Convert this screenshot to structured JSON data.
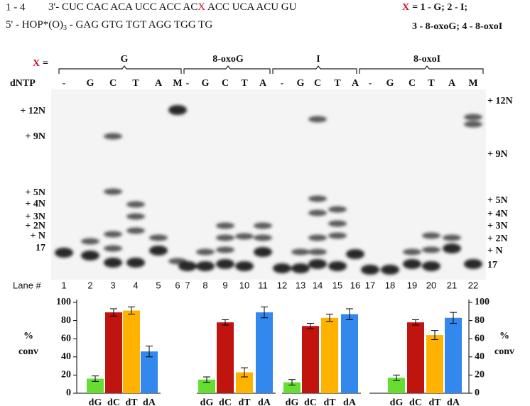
{
  "header": {
    "lanes": "1 - 4",
    "template": [
      "3'- CUC CAC ACA UCC ACC AC",
      "X",
      " ACC UCA ACU GU"
    ],
    "primer": [
      "5' - HOP*(O)",
      "3",
      " - GAG GTG TGT AGG TGG TG"
    ],
    "key": [
      "X",
      "= 1 - G; 2 - I;",
      "3 - 8-oxoG; 4 - 8-oxoI"
    ]
  },
  "gel": {
    "x_label": [
      "X",
      "="
    ],
    "groups": [
      "G",
      "8-oxoG",
      "I",
      "8-oxoI"
    ],
    "dntp_label": "dNTP",
    "dntp": [
      "-",
      "G",
      "C",
      "T",
      "A",
      "M",
      "-",
      "G",
      "C",
      "T",
      "A",
      "-",
      "G",
      "C",
      "T",
      "A",
      "-",
      "G",
      "C",
      "T",
      "A",
      "M"
    ],
    "left_markers": [
      "+ 12N",
      "+ 9N",
      "+ 5N",
      "+ 4N",
      "+ 3N",
      "+ 2N",
      "+ N",
      "17"
    ],
    "right_markers": [
      "+ 12N",
      "+ 9N",
      "+ 5N",
      "+ 4N",
      "+ 3N",
      "+ 2N",
      "+ N",
      "17"
    ],
    "lane_label": "Lane #",
    "lanes": [
      1,
      2,
      3,
      4,
      5,
      6,
      7,
      8,
      9,
      10,
      11,
      12,
      13,
      14,
      15,
      16,
      17,
      18,
      19,
      20,
      21,
      22
    ]
  },
  "chart_data": [
    {
      "type": "bar",
      "categories": [
        "dG",
        "dC",
        "dT",
        "dA"
      ],
      "values": [
        16,
        89,
        91,
        46
      ],
      "errors": [
        3,
        4,
        4,
        6
      ],
      "colors": [
        "#66dd33",
        "#c0140f",
        "#ffb300",
        "#3388ee"
      ],
      "ylim": [
        0,
        100
      ],
      "yticks": [
        0,
        20,
        40,
        60,
        80,
        100
      ],
      "y_label": [
        "%",
        "conv"
      ]
    },
    {
      "type": "bar",
      "categories": [
        "dG",
        "dC",
        "dT",
        "dA"
      ],
      "values": [
        15,
        78,
        23,
        89
      ],
      "errors": [
        3,
        3,
        5,
        6
      ],
      "colors": [
        "#66dd33",
        "#c0140f",
        "#ffb300",
        "#3388ee"
      ],
      "ylim": [
        0,
        100
      ]
    },
    {
      "type": "bar",
      "categories": [
        "dG",
        "dC",
        "dT",
        "dA"
      ],
      "values": [
        12,
        74,
        83,
        87
      ],
      "errors": [
        3,
        3,
        4,
        6
      ],
      "colors": [
        "#66dd33",
        "#c0140f",
        "#ffb300",
        "#3388ee"
      ],
      "ylim": [
        0,
        100
      ]
    },
    {
      "type": "bar",
      "categories": [
        "dG",
        "dC",
        "dT",
        "dA"
      ],
      "values": [
        17,
        78,
        64,
        83
      ],
      "errors": [
        3,
        3,
        5,
        6
      ],
      "colors": [
        "#66dd33",
        "#c0140f",
        "#ffb300",
        "#3388ee"
      ],
      "ylim": [
        0,
        100
      ],
      "yticks": [
        0,
        20,
        40,
        60,
        80,
        100
      ],
      "y_label": [
        "%",
        "conv"
      ]
    }
  ]
}
